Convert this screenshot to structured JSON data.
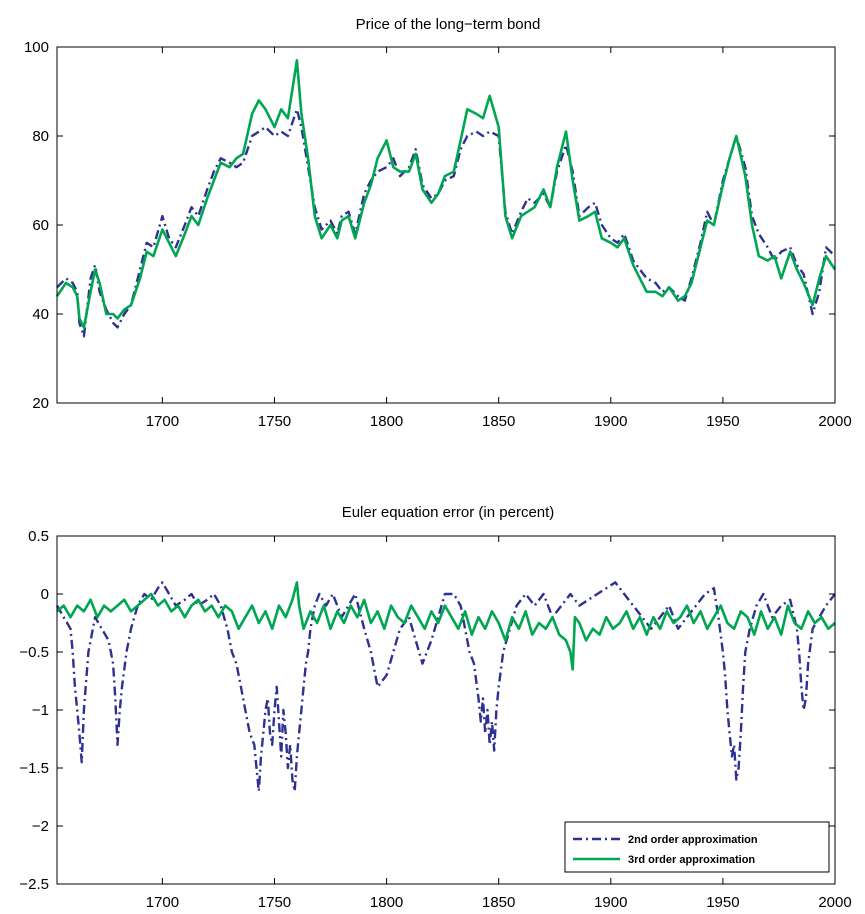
{
  "chart_data": [
    {
      "type": "line",
      "title": "Price of the long−term bond",
      "xlabel": "",
      "ylabel": "",
      "xlim": [
        1653,
        2000
      ],
      "ylim": [
        20,
        100
      ],
      "xticks": [
        1700,
        1750,
        1800,
        1850,
        1900,
        1950,
        2000
      ],
      "yticks": [
        20,
        40,
        60,
        80,
        100
      ],
      "xtick_labels": [
        "1700",
        "1750",
        "1800",
        "1850",
        "1900",
        "1950",
        "2000"
      ],
      "ytick_labels": [
        "20",
        "40",
        "60",
        "80",
        "100"
      ],
      "grid": false,
      "legend": null,
      "series": [
        {
          "color": "#2e3192",
          "style": "dash-dot",
          "x": [
            1653,
            1657,
            1660,
            1662,
            1663,
            1665,
            1668,
            1670,
            1672,
            1675,
            1678,
            1680,
            1683,
            1686,
            1690,
            1693,
            1696,
            1700,
            1703,
            1706,
            1710,
            1713,
            1716,
            1720,
            1723,
            1726,
            1730,
            1733,
            1736,
            1740,
            1743,
            1746,
            1750,
            1753,
            1756,
            1760,
            1762,
            1765,
            1768,
            1771,
            1775,
            1778,
            1780,
            1783,
            1786,
            1790,
            1793,
            1796,
            1800,
            1803,
            1806,
            1810,
            1813,
            1816,
            1820,
            1823,
            1826,
            1830,
            1833,
            1836,
            1840,
            1843,
            1846,
            1850,
            1853,
            1856,
            1860,
            1863,
            1866,
            1870,
            1873,
            1876,
            1880,
            1883,
            1886,
            1890,
            1893,
            1896,
            1900,
            1903,
            1906,
            1910,
            1913,
            1916,
            1920,
            1923,
            1926,
            1930,
            1933,
            1936,
            1940,
            1943,
            1946,
            1950,
            1953,
            1956,
            1960,
            1963,
            1966,
            1970,
            1973,
            1976,
            1980,
            1983,
            1986,
            1990,
            1993,
            1996,
            2000
          ],
          "y": [
            46,
            48,
            47,
            45,
            38,
            35,
            48,
            51,
            45,
            41,
            38,
            37,
            40,
            42,
            50,
            56,
            55,
            62,
            57,
            55,
            60,
            64,
            62,
            68,
            72,
            75,
            74,
            73,
            74,
            80,
            81,
            82,
            80,
            81,
            80,
            86,
            82,
            73,
            64,
            59,
            61,
            58,
            62,
            63,
            58,
            67,
            70,
            72,
            73,
            75,
            71,
            73,
            77,
            69,
            66,
            67,
            70,
            71,
            77,
            80,
            81,
            80,
            81,
            80,
            63,
            58,
            63,
            66,
            65,
            67,
            64,
            72,
            78,
            72,
            62,
            64,
            65,
            60,
            57,
            56,
            58,
            52,
            50,
            48,
            47,
            45,
            46,
            44,
            43,
            48,
            56,
            63,
            60,
            70,
            75,
            80,
            73,
            62,
            58,
            55,
            52,
            54,
            55,
            51,
            49,
            40,
            45,
            55,
            53
          ]
        },
        {
          "color": "#00a651",
          "style": "solid",
          "x": [
            1653,
            1657,
            1660,
            1662,
            1663,
            1665,
            1668,
            1670,
            1672,
            1675,
            1678,
            1680,
            1683,
            1686,
            1690,
            1693,
            1696,
            1700,
            1703,
            1706,
            1710,
            1713,
            1716,
            1720,
            1723,
            1726,
            1730,
            1733,
            1736,
            1740,
            1743,
            1746,
            1750,
            1753,
            1756,
            1760,
            1762,
            1765,
            1768,
            1771,
            1775,
            1778,
            1780,
            1783,
            1786,
            1790,
            1793,
            1796,
            1800,
            1803,
            1806,
            1810,
            1813,
            1816,
            1820,
            1823,
            1826,
            1830,
            1833,
            1836,
            1840,
            1843,
            1846,
            1850,
            1853,
            1856,
            1860,
            1863,
            1866,
            1870,
            1873,
            1876,
            1880,
            1883,
            1886,
            1890,
            1893,
            1896,
            1900,
            1903,
            1906,
            1910,
            1913,
            1916,
            1920,
            1923,
            1926,
            1930,
            1933,
            1936,
            1940,
            1943,
            1946,
            1950,
            1953,
            1956,
            1960,
            1963,
            1966,
            1970,
            1973,
            1976,
            1980,
            1983,
            1986,
            1990,
            1993,
            1996,
            2000
          ],
          "y": [
            44,
            47,
            46,
            44,
            39,
            37,
            45,
            50,
            47,
            40,
            40,
            39,
            41,
            42,
            48,
            54,
            53,
            59,
            56,
            53,
            58,
            62,
            60,
            66,
            70,
            74,
            73,
            75,
            76,
            85,
            88,
            86,
            82,
            86,
            84,
            97,
            85,
            75,
            62,
            57,
            60,
            57,
            61,
            62,
            57,
            65,
            69,
            75,
            79,
            73,
            72,
            72,
            76,
            68,
            65,
            67,
            71,
            72,
            79,
            86,
            85,
            84,
            89,
            82,
            62,
            57,
            62,
            63,
            64,
            68,
            64,
            73,
            81,
            70,
            61,
            62,
            63,
            57,
            56,
            55,
            57,
            51,
            48,
            45,
            45,
            44,
            46,
            43,
            44,
            47,
            55,
            61,
            60,
            69,
            75,
            80,
            71,
            60,
            53,
            52,
            53,
            48,
            54,
            50,
            47,
            42,
            48,
            53,
            50
          ]
        }
      ]
    },
    {
      "type": "line",
      "title": "Euler equation error (in percent)",
      "xlabel": "",
      "ylabel": "",
      "xlim": [
        1653,
        2000
      ],
      "ylim": [
        -2.5,
        0.5
      ],
      "xticks": [
        1700,
        1750,
        1800,
        1850,
        1900,
        1950,
        2000
      ],
      "yticks": [
        -2.5,
        -2,
        -1.5,
        -1,
        -0.5,
        0,
        0.5
      ],
      "xtick_labels": [
        "1700",
        "1750",
        "1800",
        "1850",
        "1900",
        "1950",
        "2000"
      ],
      "ytick_labels": [
        "−2.5",
        "−2",
        "−1.5",
        "−1",
        "−0.5",
        "0",
        "0.5"
      ],
      "grid": false,
      "legend": "bottom-right",
      "series": [
        {
          "name": "2nd order approximation",
          "color": "#2e3192",
          "style": "dash-dot",
          "x": [
            1653,
            1656,
            1659,
            1660,
            1661,
            1662,
            1663,
            1664,
            1665,
            1667,
            1670,
            1673,
            1676,
            1678,
            1679,
            1680,
            1681,
            1682,
            1684,
            1686,
            1689,
            1692,
            1695,
            1698,
            1700,
            1703,
            1706,
            1710,
            1713,
            1716,
            1720,
            1723,
            1726,
            1729,
            1731,
            1733,
            1735,
            1737,
            1739,
            1741,
            1742,
            1743,
            1744,
            1745,
            1746,
            1747,
            1748,
            1749,
            1750,
            1751,
            1752,
            1753,
            1754,
            1755,
            1756,
            1757,
            1758,
            1759,
            1760,
            1761,
            1762,
            1763,
            1764,
            1765,
            1766,
            1767,
            1768,
            1770,
            1773,
            1776,
            1780,
            1783,
            1786,
            1790,
            1793,
            1796,
            1800,
            1803,
            1806,
            1810,
            1813,
            1816,
            1820,
            1823,
            1826,
            1830,
            1833,
            1835,
            1837,
            1839,
            1841,
            1842,
            1843,
            1844,
            1845,
            1846,
            1847,
            1848,
            1849,
            1850,
            1852,
            1855,
            1858,
            1862,
            1866,
            1870,
            1874,
            1878,
            1882,
            1886,
            1890,
            1894,
            1898,
            1902,
            1906,
            1910,
            1914,
            1918,
            1922,
            1926,
            1930,
            1934,
            1938,
            1942,
            1946,
            1948,
            1950,
            1951,
            1952,
            1953,
            1954,
            1955,
            1956,
            1957,
            1958,
            1959,
            1960,
            1962,
            1965,
            1968,
            1972,
            1976,
            1980,
            1983,
            1984,
            1985,
            1986,
            1987,
            1988,
            1990,
            1993,
            1996,
            2000
          ],
          "y": [
            -0.1,
            -0.2,
            -0.3,
            -0.5,
            -0.8,
            -1.0,
            -1.2,
            -1.45,
            -1.0,
            -0.5,
            -0.2,
            -0.3,
            -0.4,
            -0.6,
            -0.9,
            -1.3,
            -1.0,
            -0.8,
            -0.5,
            -0.3,
            -0.1,
            0.0,
            -0.05,
            0.05,
            0.1,
            0.0,
            -0.1,
            -0.05,
            0.0,
            -0.1,
            -0.05,
            0.0,
            -0.1,
            -0.3,
            -0.5,
            -0.6,
            -0.8,
            -1.0,
            -1.2,
            -1.3,
            -1.5,
            -1.7,
            -1.4,
            -1.2,
            -1.0,
            -0.9,
            -1.2,
            -1.3,
            -1.0,
            -0.8,
            -1.1,
            -1.4,
            -1.0,
            -1.2,
            -1.5,
            -1.3,
            -1.6,
            -1.7,
            -1.4,
            -1.2,
            -1.0,
            -0.8,
            -0.6,
            -0.5,
            -0.3,
            -0.2,
            -0.1,
            0.0,
            -0.1,
            0.0,
            -0.2,
            -0.1,
            0.0,
            -0.3,
            -0.5,
            -0.8,
            -0.7,
            -0.5,
            -0.3,
            -0.2,
            -0.4,
            -0.6,
            -0.4,
            -0.2,
            0.0,
            0.0,
            -0.1,
            -0.3,
            -0.5,
            -0.6,
            -0.9,
            -1.1,
            -0.9,
            -1.2,
            -1.0,
            -1.3,
            -1.1,
            -1.35,
            -1.0,
            -0.8,
            -0.5,
            -0.3,
            -0.1,
            0.0,
            -0.1,
            0.0,
            -0.2,
            -0.1,
            0.0,
            -0.1,
            -0.05,
            0.0,
            0.05,
            0.1,
            0.0,
            -0.1,
            -0.2,
            -0.3,
            -0.2,
            -0.1,
            -0.3,
            -0.2,
            -0.1,
            0.0,
            0.05,
            -0.2,
            -0.5,
            -0.7,
            -1.0,
            -1.2,
            -1.4,
            -1.3,
            -1.6,
            -1.5,
            -1.2,
            -0.8,
            -0.5,
            -0.3,
            -0.1,
            0.0,
            -0.2,
            -0.1,
            -0.05,
            -0.3,
            -0.5,
            -0.8,
            -1.0,
            -0.9,
            -0.6,
            -0.3,
            -0.2,
            -0.1,
            0.0
          ]
        },
        {
          "name": "3rd order approximation",
          "color": "#00a651",
          "style": "solid",
          "x": [
            1653,
            1656,
            1659,
            1662,
            1665,
            1668,
            1671,
            1674,
            1677,
            1680,
            1683,
            1686,
            1689,
            1692,
            1695,
            1698,
            1701,
            1704,
            1707,
            1710,
            1713,
            1716,
            1719,
            1722,
            1725,
            1728,
            1731,
            1734,
            1737,
            1740,
            1743,
            1746,
            1749,
            1752,
            1755,
            1758,
            1760,
            1761,
            1763,
            1766,
            1769,
            1772,
            1775,
            1778,
            1781,
            1784,
            1787,
            1790,
            1793,
            1796,
            1799,
            1802,
            1805,
            1808,
            1811,
            1814,
            1817,
            1820,
            1823,
            1826,
            1829,
            1832,
            1835,
            1838,
            1841,
            1844,
            1847,
            1850,
            1853,
            1856,
            1859,
            1862,
            1865,
            1868,
            1871,
            1874,
            1877,
            1880,
            1882,
            1883,
            1884,
            1886,
            1889,
            1892,
            1895,
            1898,
            1901,
            1904,
            1907,
            1910,
            1913,
            1916,
            1919,
            1922,
            1925,
            1928,
            1931,
            1934,
            1937,
            1940,
            1943,
            1946,
            1949,
            1952,
            1955,
            1958,
            1961,
            1964,
            1967,
            1970,
            1973,
            1976,
            1979,
            1982,
            1985,
            1988,
            1991,
            1994,
            1997,
            2000
          ],
          "y": [
            -0.15,
            -0.1,
            -0.2,
            -0.1,
            -0.15,
            -0.05,
            -0.2,
            -0.1,
            -0.15,
            -0.1,
            -0.05,
            -0.15,
            -0.1,
            -0.05,
            0.0,
            -0.1,
            -0.05,
            -0.15,
            -0.1,
            -0.2,
            -0.1,
            -0.05,
            -0.15,
            -0.1,
            -0.2,
            -0.1,
            -0.15,
            -0.3,
            -0.2,
            -0.1,
            -0.25,
            -0.15,
            -0.3,
            -0.1,
            -0.2,
            -0.05,
            0.1,
            -0.1,
            -0.3,
            -0.15,
            -0.25,
            -0.1,
            -0.3,
            -0.15,
            -0.25,
            -0.1,
            -0.2,
            -0.05,
            -0.25,
            -0.15,
            -0.3,
            -0.1,
            -0.2,
            -0.25,
            -0.1,
            -0.2,
            -0.3,
            -0.15,
            -0.25,
            -0.1,
            -0.2,
            -0.3,
            -0.15,
            -0.35,
            -0.2,
            -0.3,
            -0.15,
            -0.25,
            -0.4,
            -0.2,
            -0.3,
            -0.15,
            -0.35,
            -0.25,
            -0.3,
            -0.2,
            -0.35,
            -0.4,
            -0.5,
            -0.65,
            -0.2,
            -0.25,
            -0.4,
            -0.3,
            -0.35,
            -0.2,
            -0.3,
            -0.25,
            -0.15,
            -0.3,
            -0.2,
            -0.35,
            -0.2,
            -0.3,
            -0.15,
            -0.25,
            -0.2,
            -0.1,
            -0.25,
            -0.15,
            -0.3,
            -0.2,
            -0.1,
            -0.25,
            -0.3,
            -0.15,
            -0.2,
            -0.35,
            -0.15,
            -0.3,
            -0.2,
            -0.35,
            -0.1,
            -0.25,
            -0.3,
            -0.15,
            -0.25,
            -0.2,
            -0.3,
            -0.25
          ]
        }
      ]
    }
  ]
}
